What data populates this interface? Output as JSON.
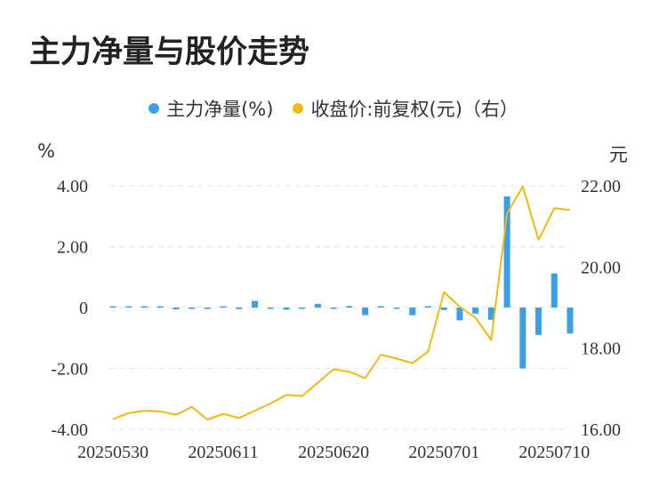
{
  "title": "主力净量与股价走势",
  "legend": {
    "left_label": "主力净量(%)",
    "right_label": "收盘价:前复权(元)（右）"
  },
  "chart_data": {
    "type": "bar+line",
    "title": "主力净量与股价走势",
    "left_axis": {
      "unit": "%",
      "ylim": [
        -4,
        4
      ],
      "ticks": [
        "4.00",
        "2.00",
        "0",
        "-2.00",
        "-4.00"
      ],
      "tick_values": [
        4,
        2,
        0,
        -2,
        -4
      ]
    },
    "right_axis": {
      "unit": "元",
      "ylim": [
        16,
        22
      ],
      "ticks": [
        "22.00",
        "20.00",
        "18.00",
        "16.00"
      ],
      "tick_values": [
        22,
        20,
        18,
        16
      ]
    },
    "x_labels": [
      "20250530",
      "20250611",
      "20250620",
      "20250701",
      "20250710"
    ],
    "x_label_index": [
      0,
      7,
      14,
      21,
      28
    ],
    "grid": "horizontal-dashed",
    "legend_position": "top-center",
    "series": [
      {
        "name": "主力净量(%)",
        "type": "bar",
        "axis": "left",
        "color": "#3a9ee8",
        "values": [
          0.0,
          0.03,
          0.02,
          0.01,
          -0.06,
          -0.04,
          -0.03,
          0.01,
          -0.05,
          0.22,
          -0.02,
          -0.07,
          -0.04,
          0.12,
          -0.02,
          0.05,
          -0.25,
          0.0,
          -0.04,
          -0.25,
          0.03,
          -0.08,
          -0.42,
          -0.2,
          -0.4,
          3.65,
          -2.0,
          -0.9,
          1.12,
          -0.85
        ]
      },
      {
        "name": "收盘价:前复权(元)（右）",
        "type": "line",
        "axis": "right",
        "color": "#f2b811",
        "values": [
          16.25,
          16.4,
          16.46,
          16.44,
          16.36,
          16.55,
          16.24,
          16.38,
          16.28,
          16.46,
          16.64,
          16.85,
          16.82,
          17.15,
          17.48,
          17.42,
          17.26,
          17.84,
          17.74,
          17.63,
          17.92,
          19.38,
          19.02,
          18.75,
          18.2,
          21.32,
          21.98,
          20.67,
          21.45,
          21.4
        ]
      }
    ]
  }
}
